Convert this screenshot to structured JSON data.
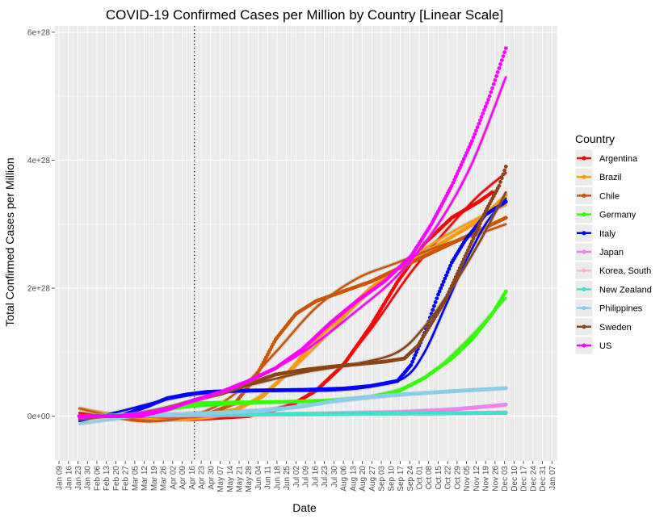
{
  "chart_data": {
    "type": "line",
    "title": "COVID-19 Confirmed Cases per Million by Country [Linear Scale]",
    "xlabel": "Date",
    "ylabel": "Total Confirmed Cases per Million",
    "x_ticks": [
      "Jan 09",
      "Jan 16",
      "Jan 23",
      "Jan 30",
      "Feb 06",
      "Feb 13",
      "Feb 20",
      "Feb 27",
      "Mar 05",
      "Mar 12",
      "Mar 19",
      "Mar 26",
      "Apr 02",
      "Apr 09",
      "Apr 16",
      "Apr 23",
      "Apr 30",
      "May 07",
      "May 14",
      "May 21",
      "May 28",
      "Jun 04",
      "Jun 11",
      "Jun 18",
      "Jun 25",
      "Jul 02",
      "Jul 09",
      "Jul 16",
      "Jul 23",
      "Jul 30",
      "Aug 06",
      "Aug 13",
      "Aug 20",
      "Aug 27",
      "Sep 03",
      "Sep 10",
      "Sep 17",
      "Sep 24",
      "Oct 01",
      "Oct 08",
      "Oct 15",
      "Oct 22",
      "Oct 29",
      "Nov 05",
      "Nov 12",
      "Nov 19",
      "Nov 26",
      "Dec 03",
      "Dec 10",
      "Dec 17",
      "Dec 24",
      "Dec 31",
      "Jan 07"
    ],
    "y_ticks": [
      "0e+00",
      "2e+28",
      "4e+28",
      "6e+28"
    ],
    "ylim": [
      -7e+27,
      6.1e+28
    ],
    "x_unit": "day index from Jan 09 (0) to Jan 07 (364), weekly ticks",
    "xlim": [
      -3,
      368
    ],
    "vline_x": 100,
    "legend": {
      "title": "Country",
      "position": "right",
      "items": [
        {
          "label": "Argentina",
          "color": "#ff0000"
        },
        {
          "label": "Brazil",
          "color": "#ff9900"
        },
        {
          "label": "Chile",
          "color": "#cc5500"
        },
        {
          "label": "Germany",
          "color": "#33ff00"
        },
        {
          "label": "Italy",
          "color": "#0000ff"
        },
        {
          "label": "Japan",
          "color": "#ee82ee"
        },
        {
          "label": "Korea, South",
          "color": "#ffb6c1"
        },
        {
          "label": "New Zealand",
          "color": "#40e0d0"
        },
        {
          "label": "Philippines",
          "color": "#87ceeb"
        },
        {
          "label": "Sweden",
          "color": "#8b4513"
        },
        {
          "label": "US",
          "color": "#ff00ff"
        }
      ]
    },
    "series": [
      {
        "name": "Argentina",
        "color": "#ff0000",
        "points": [
          [
            15,
            0
          ],
          [
            50,
            0
          ],
          [
            100,
            -5e+26
          ],
          [
            140,
            0
          ],
          [
            170,
            1.5e+27
          ],
          [
            190,
            4e+27
          ],
          [
            210,
            8e+27
          ],
          [
            230,
            1.4e+28
          ],
          [
            250,
            2.1e+28
          ],
          [
            270,
            2.7e+28
          ],
          [
            290,
            3.1e+28
          ],
          [
            310,
            3.35e+28
          ],
          [
            320,
            3.5e+28
          ]
        ],
        "fit": [
          [
            15,
            5e+26
          ],
          [
            60,
            -5e+26
          ],
          [
            120,
            -2e+26
          ],
          [
            170,
            1.8e+27
          ],
          [
            200,
            6e+27
          ],
          [
            230,
            1.35e+28
          ],
          [
            260,
            2.25e+28
          ],
          [
            290,
            3e+28
          ],
          [
            310,
            3.45e+28
          ],
          [
            330,
            3.8e+28
          ]
        ]
      },
      {
        "name": "Brazil",
        "color": "#ff9900",
        "points": [
          [
            15,
            0
          ],
          [
            80,
            0
          ],
          [
            110,
            2e+26
          ],
          [
            130,
            1e+27
          ],
          [
            150,
            3e+27
          ],
          [
            170,
            7e+27
          ],
          [
            190,
            1.2e+28
          ],
          [
            210,
            1.6e+28
          ],
          [
            230,
            2e+28
          ],
          [
            250,
            2.3e+28
          ],
          [
            270,
            2.55e+28
          ],
          [
            290,
            2.8e+28
          ],
          [
            310,
            3.05e+28
          ],
          [
            330,
            3.45e+28
          ]
        ],
        "fit": [
          [
            15,
            1.2e+27
          ],
          [
            60,
            -3e+26
          ],
          [
            100,
            -5e+26
          ],
          [
            130,
            8e+26
          ],
          [
            160,
            5e+27
          ],
          [
            190,
            1.1e+28
          ],
          [
            220,
            1.75e+28
          ],
          [
            250,
            2.3e+28
          ],
          [
            280,
            2.75e+28
          ],
          [
            310,
            3.1e+28
          ],
          [
            330,
            3.3e+28
          ]
        ]
      },
      {
        "name": "Chile",
        "color": "#cc5500",
        "points": [
          [
            15,
            0
          ],
          [
            80,
            0
          ],
          [
            110,
            3e+26
          ],
          [
            130,
            2e+27
          ],
          [
            145,
            6e+27
          ],
          [
            160,
            1.2e+28
          ],
          [
            175,
            1.6e+28
          ],
          [
            190,
            1.8e+28
          ],
          [
            210,
            1.95e+28
          ],
          [
            230,
            2.1e+28
          ],
          [
            250,
            2.3e+28
          ],
          [
            270,
            2.5e+28
          ],
          [
            290,
            2.7e+28
          ],
          [
            310,
            2.9e+28
          ],
          [
            330,
            3.1e+28
          ]
        ],
        "fit": [
          [
            15,
            1.2e+27
          ],
          [
            60,
            -8e+26
          ],
          [
            100,
            2e+26
          ],
          [
            130,
            3.5e+27
          ],
          [
            160,
            1e+28
          ],
          [
            190,
            1.7e+28
          ],
          [
            220,
            2.15e+28
          ],
          [
            250,
            2.4e+28
          ],
          [
            280,
            2.65e+28
          ],
          [
            310,
            2.85e+28
          ],
          [
            330,
            3e+28
          ]
        ]
      },
      {
        "name": "Germany",
        "color": "#33ff00",
        "points": [
          [
            15,
            0
          ],
          [
            50,
            0
          ],
          [
            80,
            1e+27
          ],
          [
            100,
            2e+27
          ],
          [
            120,
            2.1e+27
          ],
          [
            160,
            2.2e+27
          ],
          [
            200,
            2.4e+27
          ],
          [
            230,
            3e+27
          ],
          [
            250,
            3.8e+27
          ],
          [
            270,
            6e+27
          ],
          [
            290,
            9e+27
          ],
          [
            305,
            1.2e+28
          ],
          [
            320,
            1.6e+28
          ],
          [
            330,
            1.95e+28
          ]
        ],
        "fit": [
          [
            15,
            -3e+26
          ],
          [
            60,
            5e+26
          ],
          [
            100,
            1.5e+27
          ],
          [
            150,
            2.1e+27
          ],
          [
            200,
            2.5e+27
          ],
          [
            240,
            3.5e+27
          ],
          [
            270,
            6e+27
          ],
          [
            300,
            1.15e+28
          ],
          [
            330,
            1.85e+28
          ]
        ]
      },
      {
        "name": "Italy",
        "color": "#0000ff",
        "points": [
          [
            15,
            0
          ],
          [
            45,
            0
          ],
          [
            65,
            1.5e+27
          ],
          [
            80,
            2.8e+27
          ],
          [
            95,
            3.4e+27
          ],
          [
            110,
            3.8e+27
          ],
          [
            140,
            4e+27
          ],
          [
            180,
            4.1e+27
          ],
          [
            210,
            4.3e+27
          ],
          [
            230,
            4.7e+27
          ],
          [
            250,
            5.5e+27
          ],
          [
            260,
            8e+27
          ],
          [
            270,
            1.3e+28
          ],
          [
            280,
            1.9e+28
          ],
          [
            290,
            2.4e+28
          ],
          [
            300,
            2.75e+28
          ],
          [
            315,
            3.15e+28
          ],
          [
            330,
            3.35e+28
          ]
        ],
        "fit": [
          [
            15,
            -8e+26
          ],
          [
            50,
            1e+27
          ],
          [
            80,
            2.6e+27
          ],
          [
            110,
            3.6e+27
          ],
          [
            150,
            3.9e+27
          ],
          [
            200,
            4e+27
          ],
          [
            230,
            4.6e+27
          ],
          [
            255,
            6e+27
          ],
          [
            270,
            1e+28
          ],
          [
            285,
            1.7e+28
          ],
          [
            300,
            2.4e+28
          ],
          [
            315,
            3e+28
          ],
          [
            330,
            3.4e+28
          ]
        ]
      },
      {
        "name": "Japan",
        "color": "#ee82ee",
        "points": [
          [
            15,
            0
          ],
          [
            100,
            1e+26
          ],
          [
            180,
            3e+26
          ],
          [
            250,
            6e+26
          ],
          [
            290,
            1e+27
          ],
          [
            330,
            1.8e+27
          ]
        ],
        "fit": [
          [
            15,
            0
          ],
          [
            100,
            1e+26
          ],
          [
            180,
            4e+26
          ],
          [
            250,
            7e+26
          ],
          [
            290,
            1.1e+27
          ],
          [
            330,
            1.7e+27
          ]
        ]
      },
      {
        "name": "Korea, South",
        "color": "#ffb6c1",
        "points": [
          [
            15,
            0
          ],
          [
            60,
            1e+26
          ],
          [
            150,
            2e+26
          ],
          [
            250,
            3e+26
          ],
          [
            330,
            6e+26
          ]
        ],
        "fit": [
          [
            15,
            0
          ],
          [
            150,
            2e+26
          ],
          [
            330,
            5e+26
          ]
        ]
      },
      {
        "name": "New Zealand",
        "color": "#40e0d0",
        "points": [
          [
            15,
            0
          ],
          [
            60,
            2e+26
          ],
          [
            150,
            3e+26
          ],
          [
            250,
            4e+26
          ],
          [
            330,
            5e+26
          ]
        ],
        "fit": [
          [
            15,
            0
          ],
          [
            150,
            3e+26
          ],
          [
            330,
            5e+26
          ]
        ]
      },
      {
        "name": "Philippines",
        "color": "#87ceeb",
        "points": [
          [
            15,
            0
          ],
          [
            100,
            3e+26
          ],
          [
            150,
            8e+26
          ],
          [
            180,
            1.5e+27
          ],
          [
            210,
            2.6e+27
          ],
          [
            240,
            3.2e+27
          ],
          [
            270,
            3.6e+27
          ],
          [
            300,
            4e+27
          ],
          [
            330,
            4.4e+27
          ]
        ],
        "fit": [
          [
            15,
            -1.2e+27
          ],
          [
            60,
            0
          ],
          [
            100,
            5e+26
          ],
          [
            150,
            1e+27
          ],
          [
            200,
            2.2e+27
          ],
          [
            250,
            3.3e+27
          ],
          [
            290,
            3.9e+27
          ],
          [
            330,
            4.3e+27
          ]
        ]
      },
      {
        "name": "Sweden",
        "color": "#8b4513",
        "points": [
          [
            15,
            0
          ],
          [
            50,
            0
          ],
          [
            80,
            1.2e+27
          ],
          [
            100,
            2.5e+27
          ],
          [
            120,
            3.5e+27
          ],
          [
            140,
            5e+27
          ],
          [
            160,
            6.5e+27
          ],
          [
            180,
            7.2e+27
          ],
          [
            200,
            7.7e+27
          ],
          [
            220,
            8.1e+27
          ],
          [
            240,
            8.5e+27
          ],
          [
            255,
            9e+27
          ],
          [
            265,
            1.1e+28
          ],
          [
            275,
            1.45e+28
          ],
          [
            285,
            1.8e+28
          ],
          [
            300,
            2.5e+28
          ],
          [
            315,
            3.2e+28
          ],
          [
            325,
            3.6e+28
          ],
          [
            330,
            3.9e+28
          ]
        ],
        "fit": [
          [
            15,
            -5e+26
          ],
          [
            60,
            5e+26
          ],
          [
            100,
            2.5e+27
          ],
          [
            140,
            4.8e+27
          ],
          [
            180,
            6.8e+27
          ],
          [
            220,
            8.2e+27
          ],
          [
            250,
            1e+28
          ],
          [
            270,
            1.4e+28
          ],
          [
            290,
            2e+28
          ],
          [
            310,
            2.7e+28
          ],
          [
            330,
            3.5e+28
          ]
        ]
      },
      {
        "name": "US",
        "color": "#ff00ff",
        "points": [
          [
            15,
            0
          ],
          [
            60,
            0
          ],
          [
            80,
            1e+27
          ],
          [
            100,
            2.5e+27
          ],
          [
            120,
            3.8e+27
          ],
          [
            140,
            5.5e+27
          ],
          [
            160,
            7.5e+27
          ],
          [
            180,
            1.05e+28
          ],
          [
            200,
            1.45e+28
          ],
          [
            220,
            1.8e+28
          ],
          [
            240,
            2.1e+28
          ],
          [
            260,
            2.5e+28
          ],
          [
            275,
            3e+28
          ],
          [
            290,
            3.6e+28
          ],
          [
            305,
            4.3e+28
          ],
          [
            318,
            5e+28
          ],
          [
            330,
            5.75e+28
          ]
        ],
        "fit": [
          [
            15,
            -3e+26
          ],
          [
            60,
            5e+26
          ],
          [
            100,
            2.3e+27
          ],
          [
            140,
            5.4e+27
          ],
          [
            180,
            1e+28
          ],
          [
            220,
            1.65e+28
          ],
          [
            250,
            2.2e+28
          ],
          [
            280,
            3e+28
          ],
          [
            305,
            3.95e+28
          ],
          [
            330,
            5.3e+28
          ]
        ]
      }
    ]
  }
}
